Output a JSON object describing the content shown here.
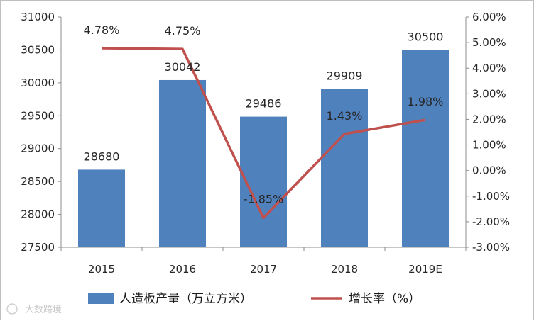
{
  "chart_data": {
    "type": "bar+line",
    "categories": [
      "2015",
      "2016",
      "2017",
      "2018",
      "2019E"
    ],
    "series": [
      {
        "name": "人造板产量（万立方米）",
        "type": "bar",
        "axis": "left",
        "values": [
          28680,
          30042,
          29486,
          29909,
          30500
        ],
        "labels": [
          "28680",
          "30042",
          "29486",
          "29909",
          "30500"
        ],
        "color": "#4f81bd"
      },
      {
        "name": "增长率（%）",
        "type": "line",
        "axis": "right",
        "values": [
          4.78,
          4.75,
          -1.85,
          1.43,
          1.98
        ],
        "labels": [
          "4.78%",
          "4.75%",
          "-1.85%",
          "1.43%",
          "1.98%"
        ],
        "color": "#c0504d"
      }
    ],
    "y_left": {
      "min": 27500,
      "max": 31000,
      "ticks": [
        "27500",
        "28000",
        "28500",
        "29000",
        "29500",
        "30000",
        "30500",
        "31000"
      ]
    },
    "y_right": {
      "min": -3,
      "max": 6,
      "ticks": [
        "-3.00%",
        "-2.00%",
        "-1.00%",
        "0.00%",
        "1.00%",
        "2.00%",
        "3.00%",
        "4.00%",
        "5.00%",
        "6.00%"
      ]
    },
    "legend": "bottom",
    "grid": false
  },
  "watermark": "大数跨境"
}
